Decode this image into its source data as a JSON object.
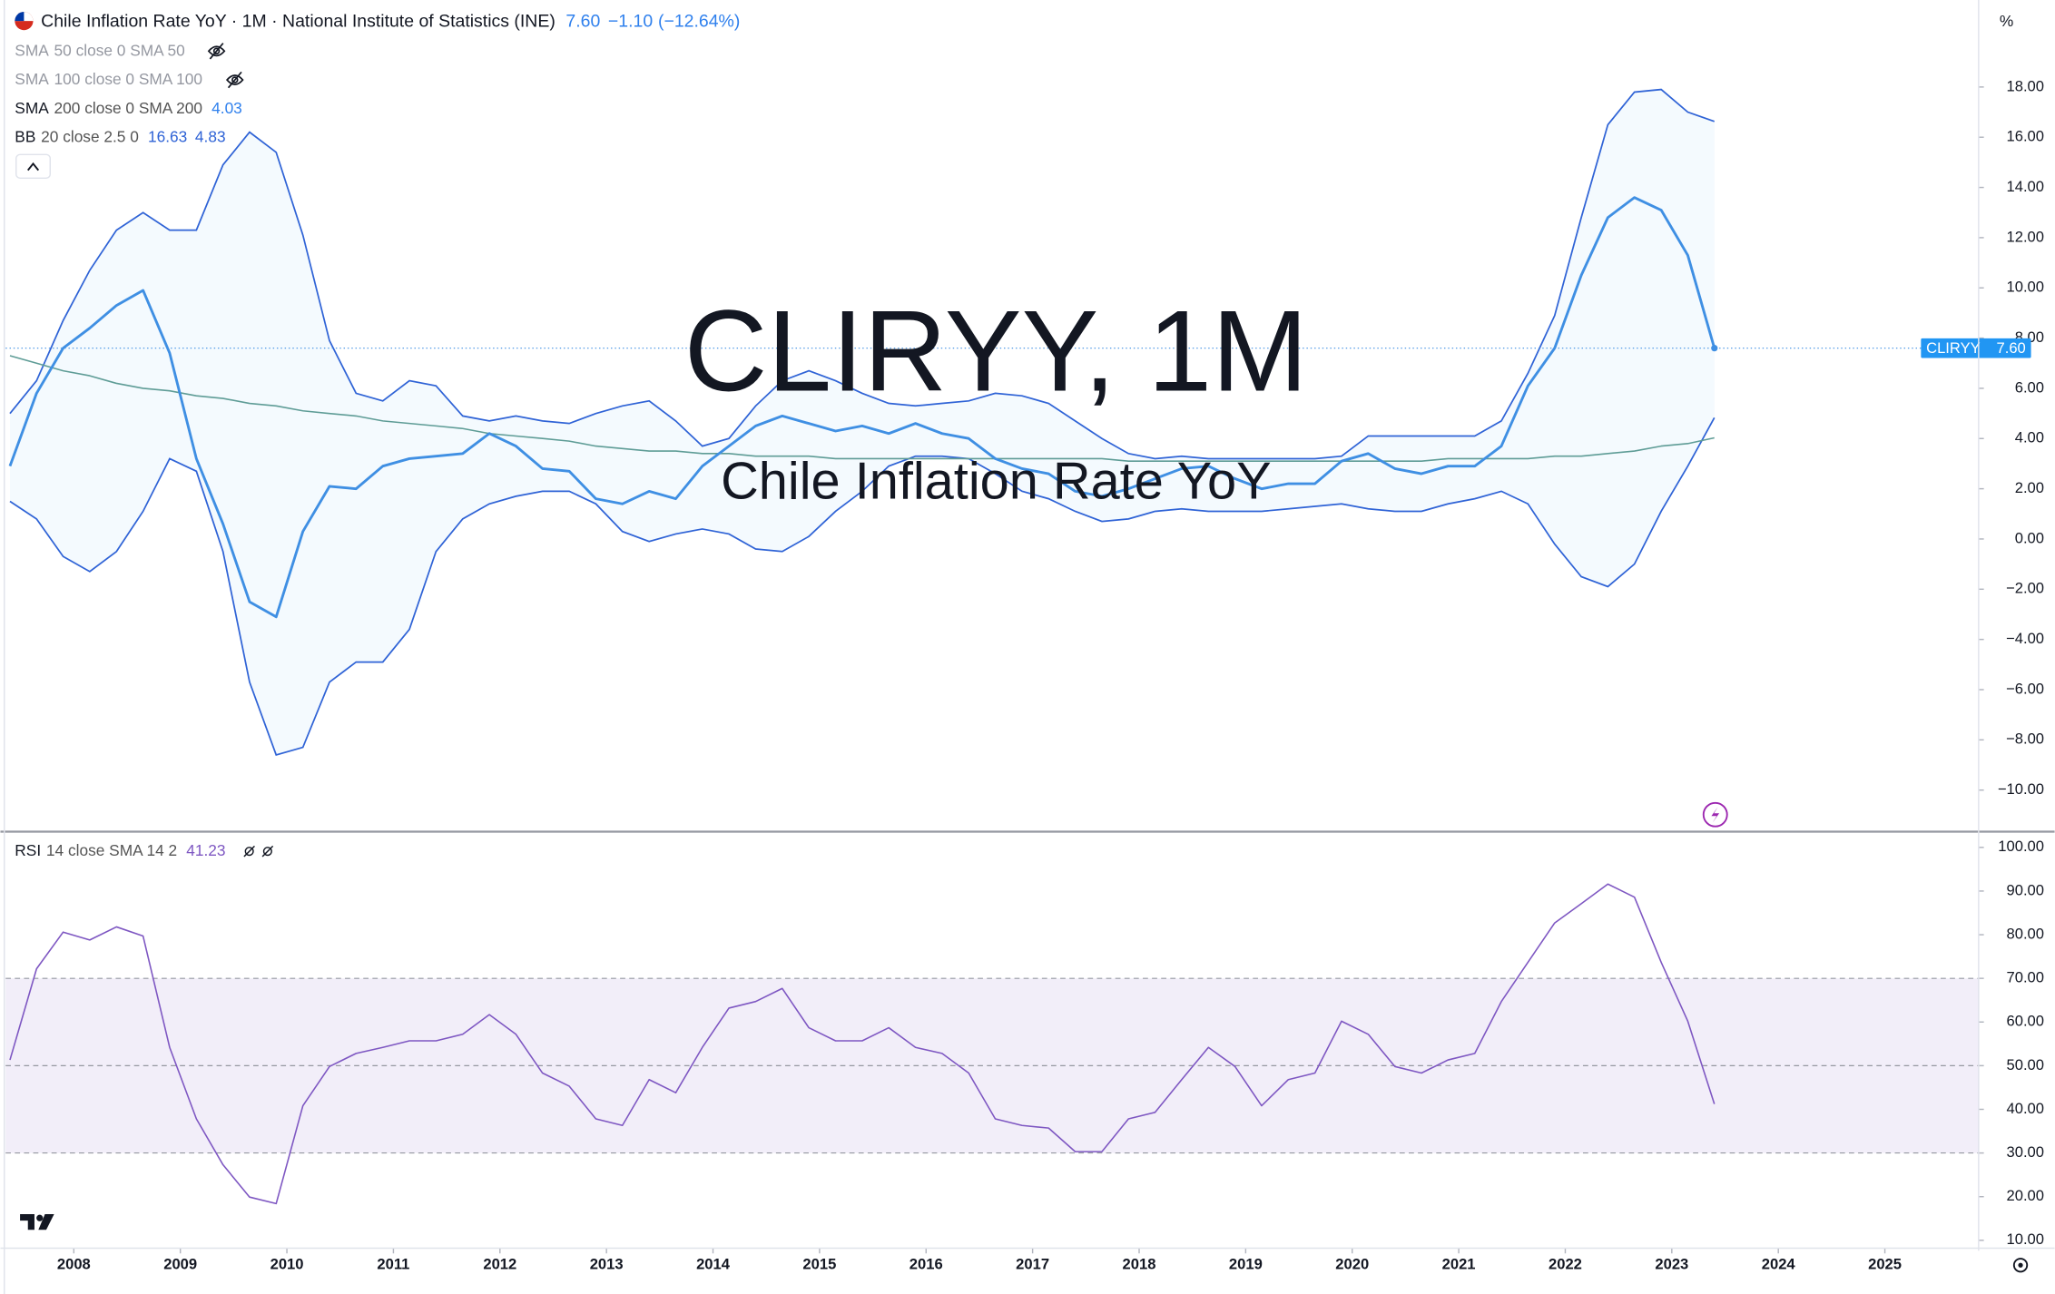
{
  "chart_data": [
    {
      "type": "line",
      "title": "Chile Inflation Rate YoY · 1M · National Institute of Statistics (INE)",
      "header": {
        "last": "7.60",
        "change": "−1.10",
        "change_pct": "(−12.64%)"
      },
      "unit": "%",
      "watermark": "CLIRYY, 1M",
      "watermark_sub": "Chile Inflation Rate YoY",
      "hidden_indicators": [
        {
          "name": "SMA",
          "params": "50 close 0 SMA 50"
        },
        {
          "name": "SMA",
          "params": "100 close 0 SMA 100"
        }
      ],
      "x": [
        2007.4,
        2007.65,
        2007.9,
        2008.15,
        2008.4,
        2008.65,
        2008.9,
        2009.15,
        2009.4,
        2009.65,
        2009.9,
        2010.15,
        2010.4,
        2010.65,
        2010.9,
        2011.15,
        2011.4,
        2011.65,
        2011.9,
        2012.15,
        2012.4,
        2012.65,
        2012.9,
        2013.15,
        2013.4,
        2013.65,
        2013.9,
        2014.15,
        2014.4,
        2014.65,
        2014.9,
        2015.15,
        2015.4,
        2015.65,
        2015.9,
        2016.15,
        2016.4,
        2016.65,
        2016.9,
        2017.15,
        2017.4,
        2017.65,
        2017.9,
        2018.15,
        2018.4,
        2018.65,
        2018.9,
        2019.15,
        2019.4,
        2019.65,
        2019.9,
        2020.15,
        2020.4,
        2020.65,
        2020.9,
        2021.15,
        2021.4,
        2021.65,
        2021.9,
        2022.15,
        2022.4,
        2022.65,
        2022.9,
        2023.15,
        2023.4
      ],
      "series": [
        {
          "name": "CLIRYY",
          "color": "#3f8fe3",
          "values": [
            2.9,
            5.8,
            7.6,
            8.4,
            9.3,
            9.9,
            7.4,
            3.2,
            0.6,
            -2.5,
            -3.1,
            0.3,
            2.1,
            2.0,
            2.9,
            3.2,
            3.3,
            3.4,
            4.2,
            3.7,
            2.8,
            2.7,
            1.6,
            1.4,
            1.9,
            1.6,
            2.9,
            3.7,
            4.5,
            4.9,
            4.6,
            4.3,
            4.5,
            4.2,
            4.6,
            4.2,
            4.0,
            3.2,
            2.8,
            2.6,
            1.9,
            1.7,
            2.0,
            2.4,
            2.8,
            2.9,
            2.4,
            2.0,
            2.2,
            2.2,
            3.1,
            3.4,
            2.8,
            2.6,
            2.9,
            2.9,
            3.7,
            6.1,
            7.6,
            10.5,
            12.8,
            13.6,
            13.1,
            11.3,
            7.6
          ]
        },
        {
          "name": "SMA",
          "params": "200 close 0 SMA 200",
          "value_label": "4.03",
          "color": "#5e9c96",
          "values": [
            7.3,
            7.0,
            6.7,
            6.5,
            6.2,
            6.0,
            5.9,
            5.7,
            5.6,
            5.4,
            5.3,
            5.1,
            5.0,
            4.9,
            4.7,
            4.6,
            4.5,
            4.4,
            4.2,
            4.1,
            4.0,
            3.9,
            3.7,
            3.6,
            3.5,
            3.5,
            3.4,
            3.4,
            3.3,
            3.3,
            3.3,
            3.2,
            3.2,
            3.2,
            3.2,
            3.2,
            3.2,
            3.2,
            3.2,
            3.2,
            3.2,
            3.2,
            3.1,
            3.1,
            3.1,
            3.1,
            3.1,
            3.1,
            3.1,
            3.1,
            3.1,
            3.1,
            3.1,
            3.1,
            3.2,
            3.2,
            3.2,
            3.2,
            3.3,
            3.3,
            3.4,
            3.5,
            3.7,
            3.8,
            4.03
          ]
        }
      ],
      "bands": {
        "name": "BB",
        "params": "20 close 2.5 0",
        "upper_label": "16.63",
        "lower_label": "4.83",
        "color": "#2f63d6",
        "fill": "rgba(33,150,243,0.05)",
        "upper": [
          5.0,
          6.3,
          8.7,
          10.7,
          12.3,
          13.0,
          12.3,
          12.3,
          14.9,
          16.2,
          15.4,
          12.1,
          7.9,
          5.8,
          5.5,
          6.3,
          6.1,
          4.9,
          4.7,
          4.9,
          4.7,
          4.6,
          5.0,
          5.3,
          5.5,
          4.7,
          3.7,
          4.0,
          5.3,
          6.3,
          6.7,
          6.3,
          5.8,
          5.4,
          5.3,
          5.4,
          5.5,
          5.8,
          5.7,
          5.4,
          4.7,
          4.0,
          3.4,
          3.2,
          3.3,
          3.2,
          3.2,
          3.2,
          3.2,
          3.2,
          3.3,
          4.1,
          4.1,
          4.1,
          4.1,
          4.1,
          4.7,
          6.6,
          8.9,
          12.8,
          16.5,
          17.8,
          17.9,
          17.0,
          16.63
        ],
        "lower": [
          1.5,
          0.8,
          -0.7,
          -1.3,
          -0.5,
          1.1,
          3.2,
          2.7,
          -0.5,
          -5.7,
          -8.6,
          -8.3,
          -5.7,
          -4.9,
          -4.9,
          -3.6,
          -0.5,
          0.8,
          1.4,
          1.7,
          1.9,
          1.9,
          1.4,
          0.3,
          -0.1,
          0.2,
          0.4,
          0.2,
          -0.4,
          -0.5,
          0.1,
          1.1,
          1.9,
          2.9,
          3.3,
          3.3,
          3.2,
          2.6,
          1.9,
          1.6,
          1.1,
          0.7,
          0.8,
          1.1,
          1.2,
          1.1,
          1.1,
          1.1,
          1.2,
          1.3,
          1.4,
          1.2,
          1.1,
          1.1,
          1.4,
          1.6,
          1.9,
          1.4,
          -0.2,
          -1.5,
          -1.9,
          -1.0,
          1.1,
          2.9,
          4.83
        ]
      },
      "xlim": [
        2007.36,
        2025.88
      ],
      "xticks": [
        2008,
        2009,
        2010,
        2011,
        2012,
        2013,
        2014,
        2015,
        2016,
        2017,
        2018,
        2019,
        2020,
        2021,
        2022,
        2023,
        2024,
        2025
      ],
      "ylim": [
        -11.5,
        19.9
      ],
      "yticks": [
        {
          "value": 18,
          "label": "18.00"
        },
        {
          "value": 16,
          "label": "16.00"
        },
        {
          "value": 14,
          "label": "14.00"
        },
        {
          "value": 12,
          "label": "12.00"
        },
        {
          "value": 10,
          "label": "10.00"
        },
        {
          "value": 8,
          "label": "8.00"
        },
        {
          "value": 6,
          "label": "6.00"
        },
        {
          "value": 4,
          "label": "4.00"
        },
        {
          "value": 2,
          "label": "2.00"
        },
        {
          "value": 0,
          "label": "0.00"
        },
        {
          "value": -2,
          "label": "−2.00"
        },
        {
          "value": -4,
          "label": "−4.00"
        },
        {
          "value": -6,
          "label": "−6.00"
        },
        {
          "value": -8,
          "label": "−8.00"
        },
        {
          "value": -10,
          "label": "−10.00"
        }
      ]
    },
    {
      "type": "line",
      "name": "RSI",
      "params": "14 close SMA 14 2",
      "value_label": "41.23",
      "color": "#7e57c2",
      "band_fill": "rgba(126,87,194,0.1)",
      "levels": [
        70,
        50,
        30
      ],
      "values": [
        51.3,
        72.2,
        80.6,
        78.8,
        81.8,
        79.7,
        54.2,
        37.8,
        27.3,
        19.9,
        18.4,
        40.8,
        49.8,
        52.8,
        54.2,
        55.7,
        55.7,
        57.2,
        61.7,
        57.2,
        48.3,
        45.3,
        37.8,
        36.3,
        46.8,
        43.8,
        54.2,
        63.2,
        64.7,
        67.7,
        58.7,
        55.7,
        55.7,
        58.7,
        54.2,
        52.8,
        48.3,
        37.8,
        36.3,
        35.7,
        30.3,
        30.3,
        37.8,
        39.3,
        46.8,
        54.2,
        49.8,
        40.8,
        46.8,
        48.3,
        60.2,
        57.2,
        49.8,
        48.3,
        51.3,
        52.8,
        64.7,
        73.7,
        82.7,
        87.1,
        91.6,
        88.6,
        73.7,
        60.2,
        41.23
      ],
      "ylim": [
        8.5,
        103.3
      ],
      "yticks": [
        {
          "value": 100,
          "label": "100.00"
        },
        {
          "value": 90,
          "label": "90.00"
        },
        {
          "value": 80,
          "label": "80.00"
        },
        {
          "value": 70,
          "label": "70.00"
        },
        {
          "value": 60,
          "label": "60.00"
        },
        {
          "value": 50,
          "label": "50.00"
        },
        {
          "value": 40,
          "label": "40.00"
        },
        {
          "value": 30,
          "label": "30.00"
        },
        {
          "value": 20,
          "label": "20.00"
        },
        {
          "value": 10,
          "label": "10.00"
        }
      ]
    }
  ]
}
